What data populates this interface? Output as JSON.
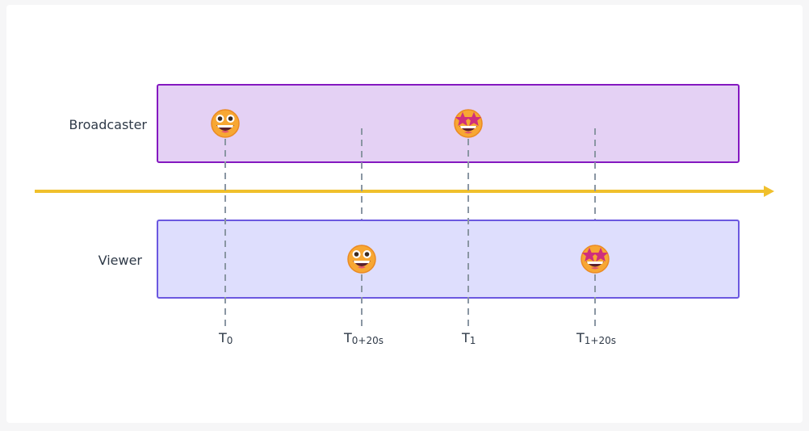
{
  "lanes": {
    "broadcaster": {
      "label": "Broadcaster",
      "fill": "#e4d1f4",
      "stroke": "#8418c0"
    },
    "viewer": {
      "label": "Viewer",
      "fill": "#dedefd",
      "stroke": "#6b58e0"
    }
  },
  "timeline": {
    "color": "#f0c02c"
  },
  "markers": [
    {
      "base": "T",
      "sub": "0"
    },
    {
      "base": "T",
      "sub": "0+20s"
    },
    {
      "base": "T",
      "sub": "1"
    },
    {
      "base": "T",
      "sub": "1+20s"
    }
  ],
  "emojis": {
    "grinning": "grinning-face-icon",
    "star_struck": "star-struck-face-icon"
  },
  "colors": {
    "dashed": "#8a96a3",
    "face": "#f7a733",
    "face_stroke": "#eb8a23",
    "star": "#cf2f7d"
  }
}
